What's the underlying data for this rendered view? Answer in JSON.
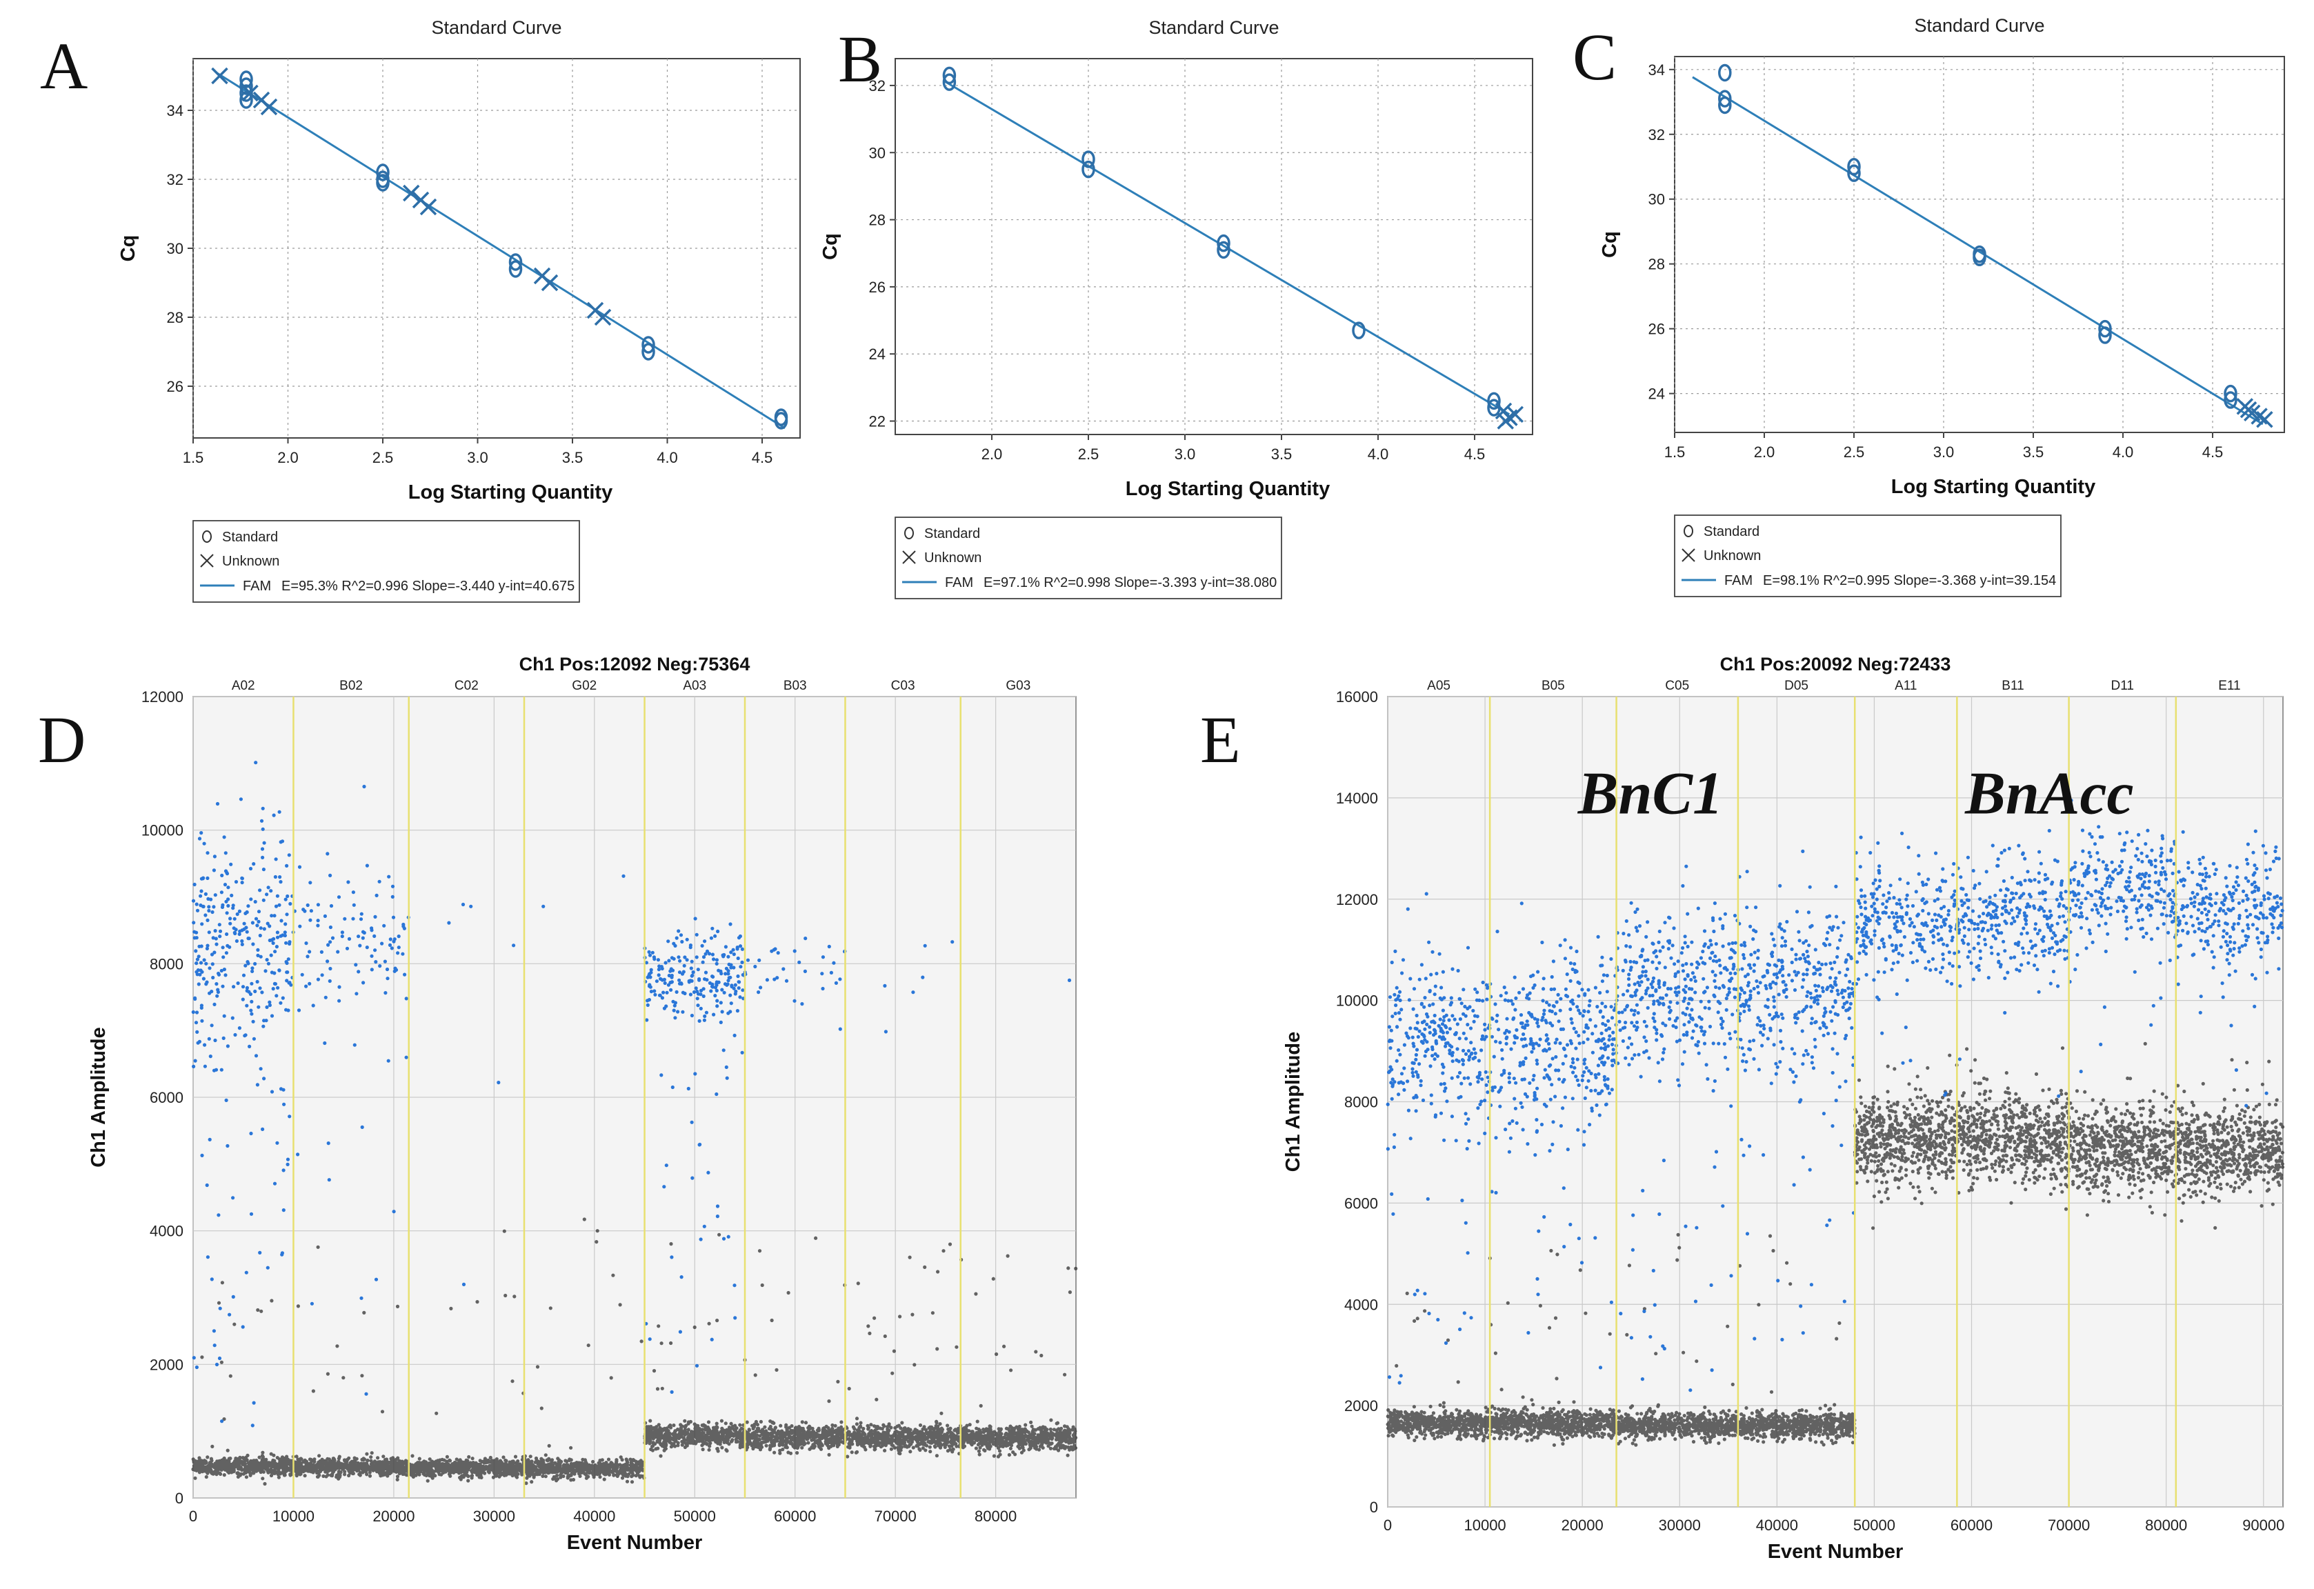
{
  "figure": {
    "panels": [
      "A",
      "B",
      "C",
      "D",
      "E"
    ]
  },
  "colors": {
    "fit_line": "#2e7fb8",
    "marker": "#2e6fa8",
    "positive": "#1f6fd6",
    "negative": "#3d3d3d",
    "well_divider": "#e8e070",
    "plot_bg": "#f4f4f4",
    "grid": "#c9c9c9"
  },
  "chart_data": [
    {
      "id": "A",
      "type": "scatter",
      "title": "Standard Curve",
      "xlabel": "Log Starting Quantity",
      "ylabel": "Cq",
      "xlim": [
        1.5,
        4.7
      ],
      "ylim": [
        24.5,
        35.5
      ],
      "xticks": [
        "1.5",
        "2.0",
        "2.5",
        "3.0",
        "3.5",
        "4.0",
        "4.5"
      ],
      "yticks": [
        "26",
        "28",
        "30",
        "32",
        "34"
      ],
      "fit": {
        "slope": -3.44,
        "intercept": 40.675,
        "x_range": [
          1.62,
          4.62
        ]
      },
      "series": [
        {
          "name": "Standard",
          "marker": "circle",
          "points": [
            [
              1.78,
              34.9
            ],
            [
              1.78,
              34.7
            ],
            [
              1.78,
              34.5
            ],
            [
              1.78,
              34.3
            ],
            [
              2.5,
              32.2
            ],
            [
              2.5,
              32.0
            ],
            [
              2.5,
              31.9
            ],
            [
              3.2,
              29.6
            ],
            [
              3.2,
              29.4
            ],
            [
              3.9,
              27.2
            ],
            [
              3.9,
              27.0
            ],
            [
              4.6,
              25.1
            ],
            [
              4.6,
              25.0
            ]
          ]
        },
        {
          "name": "Unknown",
          "marker": "x",
          "points": [
            [
              1.64,
              35.0
            ],
            [
              1.8,
              34.5
            ],
            [
              1.86,
              34.3
            ],
            [
              1.9,
              34.1
            ],
            [
              2.65,
              31.6
            ],
            [
              2.7,
              31.4
            ],
            [
              2.74,
              31.2
            ],
            [
              3.34,
              29.2
            ],
            [
              3.38,
              29.0
            ],
            [
              3.62,
              28.2
            ],
            [
              3.66,
              28.0
            ]
          ]
        }
      ],
      "legend": {
        "standard": "Standard",
        "unknown": "Unknown",
        "fit_name": "FAM",
        "fit_stats": "E=95.3% R^2=0.996 Slope=-3.440 y-int=40.675"
      }
    },
    {
      "id": "B",
      "type": "scatter",
      "title": "Standard Curve",
      "xlabel": "Log Starting Quantity",
      "ylabel": "Cq",
      "xlim": [
        1.5,
        4.8
      ],
      "ylim": [
        21.6,
        32.8
      ],
      "xticks": [
        "2.0",
        "2.5",
        "3.0",
        "3.5",
        "4.0",
        "4.5"
      ],
      "yticks": [
        "22",
        "24",
        "26",
        "28",
        "30",
        "32"
      ],
      "fit": {
        "slope": -3.393,
        "intercept": 38.08,
        "x_range": [
          1.75,
          4.68
        ]
      },
      "series": [
        {
          "name": "Standard",
          "marker": "circle",
          "points": [
            [
              1.78,
              32.3
            ],
            [
              1.78,
              32.1
            ],
            [
              2.5,
              29.8
            ],
            [
              2.5,
              29.5
            ],
            [
              3.2,
              27.3
            ],
            [
              3.2,
              27.1
            ],
            [
              3.9,
              24.7
            ],
            [
              4.6,
              22.6
            ],
            [
              4.6,
              22.4
            ]
          ]
        },
        {
          "name": "Unknown",
          "marker": "x",
          "points": [
            [
              4.65,
              22.3
            ],
            [
              4.68,
              22.1
            ],
            [
              4.71,
              22.2
            ],
            [
              4.66,
              22.0
            ]
          ]
        }
      ],
      "legend": {
        "standard": "Standard",
        "unknown": "Unknown",
        "fit_name": "FAM",
        "fit_stats": "E=97.1% R^2=0.998 Slope=-3.393 y-int=38.080"
      }
    },
    {
      "id": "C",
      "type": "scatter",
      "title": "Standard Curve",
      "xlabel": "Log Starting Quantity",
      "ylabel": "Cq",
      "xlim": [
        1.5,
        4.9
      ],
      "ylim": [
        22.8,
        34.4
      ],
      "xticks": [
        "1.5",
        "2.0",
        "2.5",
        "3.0",
        "3.5",
        "4.0",
        "4.5"
      ],
      "yticks": [
        "24",
        "26",
        "28",
        "30",
        "32",
        "34"
      ],
      "fit": {
        "slope": -3.368,
        "intercept": 39.154,
        "x_range": [
          1.6,
          4.78
        ]
      },
      "series": [
        {
          "name": "Standard",
          "marker": "circle",
          "points": [
            [
              1.78,
              33.9
            ],
            [
              1.78,
              33.1
            ],
            [
              1.78,
              32.9
            ],
            [
              2.5,
              31.0
            ],
            [
              2.5,
              30.8
            ],
            [
              3.2,
              28.3
            ],
            [
              3.2,
              28.2
            ],
            [
              3.9,
              26.0
            ],
            [
              3.9,
              25.8
            ],
            [
              4.6,
              24.0
            ],
            [
              4.6,
              23.8
            ]
          ]
        },
        {
          "name": "Unknown",
          "marker": "x",
          "points": [
            [
              4.68,
              23.6
            ],
            [
              4.72,
              23.4
            ],
            [
              4.76,
              23.3
            ],
            [
              4.79,
              23.2
            ],
            [
              4.7,
              23.5
            ]
          ]
        }
      ],
      "legend": {
        "standard": "Standard",
        "unknown": "Unknown",
        "fit_name": "FAM",
        "fit_stats": "E=98.1% R^2=0.995 Slope=-3.368 y-int=39.154"
      }
    },
    {
      "id": "D",
      "type": "scatter",
      "title": "Ch1 Pos:12092 Neg:75364",
      "xlabel": "Event Number",
      "ylabel": "Ch1 Amplitude",
      "xlim": [
        0,
        88000
      ],
      "ylim": [
        0,
        12000
      ],
      "xticks": [
        "0",
        "10000",
        "20000",
        "30000",
        "40000",
        "50000",
        "60000",
        "70000",
        "80000"
      ],
      "yticks": [
        "0",
        "2000",
        "4000",
        "6000",
        "8000",
        "10000",
        "12000"
      ],
      "wells": [
        {
          "name": "A02",
          "start": 0,
          "end": 10000,
          "pos_mean": 8300,
          "pos_sd": 900,
          "neg_mean": 480,
          "pos_frac": 0.62,
          "tail": 0.12
        },
        {
          "name": "B02",
          "start": 10000,
          "end": 21500,
          "pos_mean": 8400,
          "pos_sd": 600,
          "neg_mean": 470,
          "pos_frac": 0.18,
          "tail": 0.1
        },
        {
          "name": "C02",
          "start": 21500,
          "end": 33000,
          "pos_mean": 8700,
          "pos_sd": 500,
          "neg_mean": 450,
          "pos_frac": 0.01,
          "tail": 0.1
        },
        {
          "name": "G02",
          "start": 33000,
          "end": 45000,
          "pos_mean": 9000,
          "pos_sd": 400,
          "neg_mean": 440,
          "pos_frac": 0.003,
          "tail": 0.1
        },
        {
          "name": "A03",
          "start": 45000,
          "end": 55000,
          "pos_mean": 7800,
          "pos_sd": 300,
          "neg_mean": 930,
          "pos_frac": 0.45,
          "tail": 0.15
        },
        {
          "name": "B03",
          "start": 55000,
          "end": 65000,
          "pos_mean": 7900,
          "pos_sd": 300,
          "neg_mean": 910,
          "pos_frac": 0.06,
          "tail": 0.1
        },
        {
          "name": "C03",
          "start": 65000,
          "end": 76500,
          "pos_mean": 7900,
          "pos_sd": 300,
          "neg_mean": 910,
          "pos_frac": 0.01,
          "tail": 0.1
        },
        {
          "name": "G03",
          "start": 76500,
          "end": 88000,
          "pos_mean": 8000,
          "pos_sd": 300,
          "neg_mean": 900,
          "pos_frac": 0.001,
          "tail": 0.1
        }
      ]
    },
    {
      "id": "E",
      "type": "scatter",
      "title": "Ch1 Pos:20092 Neg:72433",
      "xlabel": "Event Number",
      "ylabel": "Ch1 Amplitude",
      "xlim": [
        0,
        92000
      ],
      "ylim": [
        0,
        16000
      ],
      "xticks": [
        "0",
        "10000",
        "20000",
        "30000",
        "40000",
        "50000",
        "60000",
        "70000",
        "80000",
        "90000"
      ],
      "yticks": [
        "0",
        "2000",
        "4000",
        "6000",
        "8000",
        "10000",
        "12000",
        "14000",
        "16000"
      ],
      "wells": [
        {
          "name": "A05",
          "start": 0,
          "end": 10500,
          "pos_mean": 9300,
          "pos_sd": 800,
          "neg_mean": 1650,
          "pos_frac": 0.55,
          "tail": 0.08
        },
        {
          "name": "B05",
          "start": 10500,
          "end": 23500,
          "pos_mean": 9300,
          "pos_sd": 800,
          "neg_mean": 1650,
          "pos_frac": 0.55,
          "tail": 0.08
        },
        {
          "name": "C05",
          "start": 23500,
          "end": 36000,
          "pos_mean": 10300,
          "pos_sd": 800,
          "neg_mean": 1600,
          "pos_frac": 0.55,
          "tail": 0.08
        },
        {
          "name": "D05",
          "start": 36000,
          "end": 48000,
          "pos_mean": 10200,
          "pos_sd": 800,
          "neg_mean": 1600,
          "pos_frac": 0.55,
          "tail": 0.08
        },
        {
          "name": "A11",
          "start": 48000,
          "end": 58500,
          "pos_mean": 11500,
          "pos_sd": 600,
          "neg_mean": 7250,
          "pos_frac": 0.45,
          "tail": 0.04
        },
        {
          "name": "B11",
          "start": 58500,
          "end": 70000,
          "pos_mean": 11700,
          "pos_sd": 600,
          "neg_mean": 7250,
          "pos_frac": 0.45,
          "tail": 0.04
        },
        {
          "name": "D11",
          "start": 70000,
          "end": 81000,
          "pos_mean": 12100,
          "pos_sd": 600,
          "neg_mean": 7100,
          "pos_frac": 0.45,
          "tail": 0.04
        },
        {
          "name": "E11",
          "start": 81000,
          "end": 92000,
          "pos_mean": 11800,
          "pos_sd": 600,
          "neg_mean": 7000,
          "pos_frac": 0.45,
          "tail": 0.04
        }
      ],
      "annotations": [
        {
          "text": "BnC1",
          "x": 27000,
          "y": 14100
        },
        {
          "text": "BnAcc",
          "x": 68000,
          "y": 14100
        }
      ]
    }
  ]
}
